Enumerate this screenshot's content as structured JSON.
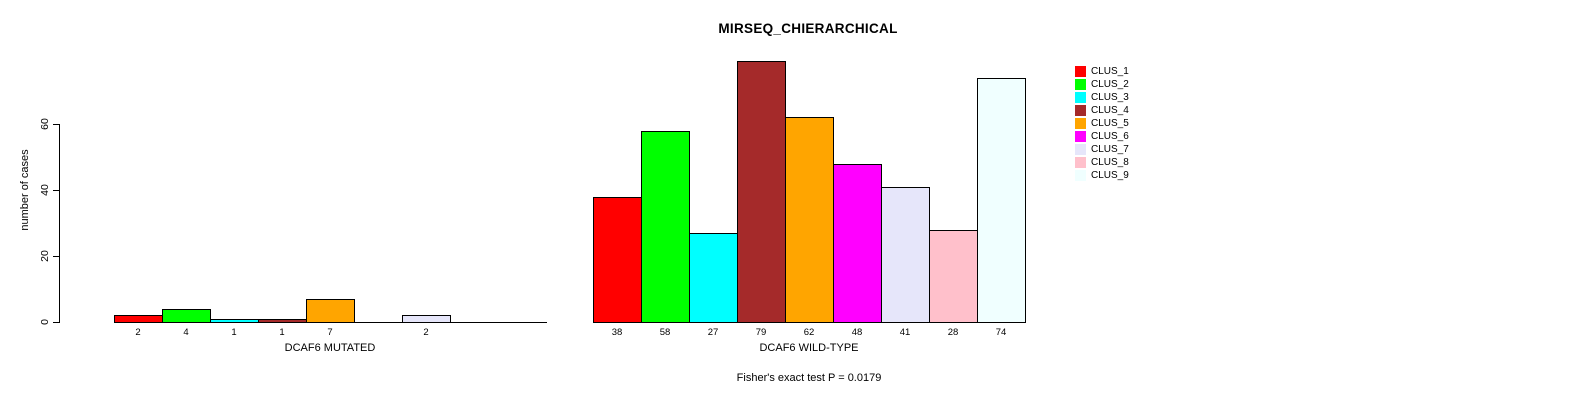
{
  "title": "MIRSEQ_CHIERARCHICAL",
  "footer": "Fisher's exact test P = 0.0179",
  "y_axis": {
    "label": "number of cases",
    "ticks": [
      0,
      20,
      40,
      60
    ]
  },
  "legend": {
    "position": "right",
    "items": [
      {
        "label": "CLUS_1",
        "color": "#FF0000"
      },
      {
        "label": "CLUS_2",
        "color": "#00FF00"
      },
      {
        "label": "CLUS_3",
        "color": "#00FFFF"
      },
      {
        "label": "CLUS_4",
        "color": "#A52A2A"
      },
      {
        "label": "CLUS_5",
        "color": "#FFA500"
      },
      {
        "label": "CLUS_6",
        "color": "#FF00FF"
      },
      {
        "label": "CLUS_7",
        "color": "#E6E6FA"
      },
      {
        "label": "CLUS_8",
        "color": "#FFC0CB"
      },
      {
        "label": "CLUS_9",
        "color": "#F0FFFF"
      }
    ]
  },
  "chart_data": [
    {
      "type": "bar",
      "title": "MIRSEQ_CHIERARCHICAL",
      "xlabel": "DCAF6 MUTATED",
      "ylabel": "number of cases",
      "categories": [
        "CLUS_1",
        "CLUS_2",
        "CLUS_3",
        "CLUS_4",
        "CLUS_5",
        "CLUS_6",
        "CLUS_7",
        "CLUS_8",
        "CLUS_9"
      ],
      "values": [
        2,
        4,
        1,
        1,
        7,
        0,
        2,
        0,
        0
      ],
      "bar_labels": [
        "2",
        "4",
        "1",
        "1",
        "7",
        "",
        "2",
        "",
        ""
      ],
      "colors": [
        "#FF0000",
        "#00FF00",
        "#00FFFF",
        "#A52A2A",
        "#FFA500",
        "#FF00FF",
        "#E6E6FA",
        "#FFC0CB",
        "#F0FFFF"
      ],
      "ylim": [
        0,
        79
      ],
      "yticks": [
        0,
        20,
        40,
        60
      ],
      "grid": false,
      "legend_position": "right"
    },
    {
      "type": "bar",
      "title": "MIRSEQ_CHIERARCHICAL",
      "xlabel": "DCAF6 WILD-TYPE",
      "ylabel": "number of cases",
      "categories": [
        "CLUS_1",
        "CLUS_2",
        "CLUS_3",
        "CLUS_4",
        "CLUS_5",
        "CLUS_6",
        "CLUS_7",
        "CLUS_8",
        "CLUS_9"
      ],
      "values": [
        38,
        58,
        27,
        79,
        62,
        48,
        41,
        28,
        74
      ],
      "bar_labels": [
        "38",
        "58",
        "27",
        "79",
        "62",
        "48",
        "41",
        "28",
        "74"
      ],
      "colors": [
        "#FF0000",
        "#00FF00",
        "#00FFFF",
        "#A52A2A",
        "#FFA500",
        "#FF00FF",
        "#E6E6FA",
        "#FFC0CB",
        "#F0FFFF"
      ],
      "ylim": [
        0,
        79
      ],
      "grid": false,
      "annotation": "Fisher's exact test P = 0.0179"
    }
  ]
}
